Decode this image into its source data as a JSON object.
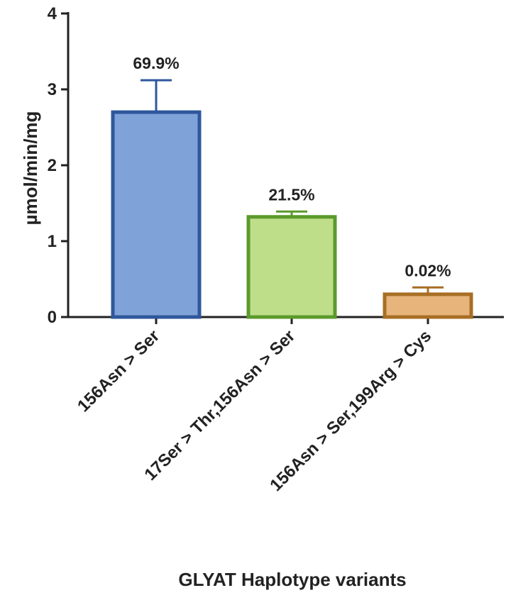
{
  "chart_data": {
    "type": "bar",
    "title": "",
    "xlabel": "GLYAT Haplotype variants",
    "ylabel": "µmol/min/mg",
    "ylim": [
      0,
      4
    ],
    "yticks": [
      "0",
      "1",
      "2",
      "3",
      "4"
    ],
    "grid": false,
    "legend": "none",
    "categories": [
      "156Asn > Ser",
      "17Ser > Thr,156Asn > Ser",
      "156Asn > Ser,199Arg > Cys"
    ],
    "values": [
      2.7,
      1.32,
      0.3
    ],
    "error_upper": [
      0.42,
      0.07,
      0.09
    ],
    "data_labels": [
      "69.9%",
      "21.5%",
      "0.02%"
    ],
    "colors": {
      "fills": [
        "#7FA3D9",
        "#BEDE8A",
        "#E7B57C"
      ],
      "strokes": [
        "#2F579C",
        "#5B9A2B",
        "#A86E24"
      ],
      "axis": "#222222"
    }
  }
}
